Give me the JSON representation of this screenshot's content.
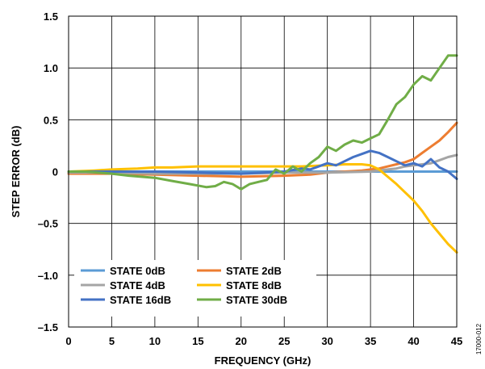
{
  "side_id": "17000-012",
  "chart_data": {
    "type": "line",
    "title": "",
    "xlabel": "FREQUENCY (GHz)",
    "ylabel": "STEP ERROR (dB)",
    "xlim": [
      0,
      45
    ],
    "ylim": [
      -1.5,
      1.5
    ],
    "xticks": [
      0,
      5,
      10,
      15,
      20,
      25,
      30,
      35,
      40,
      45
    ],
    "yticks": [
      1.5,
      1.0,
      0.5,
      0,
      -0.5,
      -1.0,
      -1.5
    ],
    "xtick_labels": [
      "0",
      "5",
      "10",
      "15",
      "20",
      "25",
      "30",
      "35",
      "40",
      "45"
    ],
    "ytick_labels": [
      "1.5",
      "1.0",
      "0.5",
      "0",
      "–0.5",
      "–1.0",
      "–1.5"
    ],
    "grid": true,
    "legend_position": "bottom-left",
    "series": [
      {
        "name": "STATE 0dB",
        "color": "#5b9bd5",
        "x": [
          0,
          45
        ],
        "y": [
          0,
          0
        ]
      },
      {
        "name": "STATE 2dB",
        "color": "#ed7d31",
        "x": [
          0,
          5,
          10,
          15,
          20,
          25,
          28,
          30,
          32,
          34,
          35,
          36,
          37,
          38,
          39,
          40,
          41,
          42,
          43,
          44,
          45
        ],
        "y": [
          -0.02,
          -0.02,
          -0.03,
          -0.04,
          -0.05,
          -0.04,
          -0.03,
          -0.01,
          0.0,
          0.01,
          0.02,
          0.03,
          0.05,
          0.07,
          0.09,
          0.12,
          0.18,
          0.24,
          0.3,
          0.38,
          0.47
        ]
      },
      {
        "name": "STATE 4dB",
        "color": "#a5a5a5",
        "x": [
          0,
          5,
          10,
          15,
          20,
          25,
          30,
          35,
          37,
          38,
          39,
          40,
          41,
          42,
          43,
          44,
          45
        ],
        "y": [
          -0.01,
          -0.01,
          -0.02,
          -0.02,
          -0.02,
          -0.01,
          -0.01,
          0.0,
          0.02,
          0.03,
          0.05,
          0.06,
          0.07,
          0.08,
          0.11,
          0.14,
          0.16
        ]
      },
      {
        "name": "STATE 8dB",
        "color": "#ffc000",
        "x": [
          0,
          3,
          5,
          8,
          10,
          12,
          15,
          18,
          20,
          23,
          25,
          27,
          30,
          32,
          34,
          35,
          36,
          37,
          38,
          39,
          40,
          41,
          42,
          43,
          44,
          45
        ],
        "y": [
          0.0,
          0.01,
          0.02,
          0.03,
          0.04,
          0.04,
          0.05,
          0.05,
          0.05,
          0.05,
          0.05,
          0.05,
          0.06,
          0.07,
          0.07,
          0.06,
          0.02,
          -0.05,
          -0.12,
          -0.2,
          -0.28,
          -0.38,
          -0.5,
          -0.6,
          -0.7,
          -0.78
        ]
      },
      {
        "name": "STATE 16dB",
        "color": "#4472c4",
        "x": [
          0,
          5,
          10,
          15,
          20,
          25,
          27,
          28,
          29,
          30,
          31,
          32,
          33,
          34,
          35,
          36,
          37,
          38,
          39,
          40,
          41,
          42,
          43,
          44,
          45
        ],
        "y": [
          0.0,
          0.0,
          0.0,
          -0.01,
          -0.02,
          0.0,
          0.03,
          0.02,
          0.05,
          0.08,
          0.06,
          0.1,
          0.14,
          0.17,
          0.2,
          0.18,
          0.14,
          0.1,
          0.06,
          0.08,
          0.05,
          0.12,
          0.04,
          0.0,
          -0.07
        ]
      },
      {
        "name": "STATE 30dB",
        "color": "#70ad47",
        "x": [
          0,
          2,
          5,
          7,
          10,
          12,
          14,
          16,
          17,
          18,
          19,
          20,
          21,
          22,
          23,
          24,
          25,
          26,
          27,
          28,
          29,
          30,
          31,
          32,
          33,
          34,
          35,
          36,
          37,
          38,
          39,
          40,
          41,
          42,
          43,
          44,
          45
        ],
        "y": [
          0.0,
          0.0,
          -0.02,
          -0.04,
          -0.06,
          -0.09,
          -0.12,
          -0.15,
          -0.14,
          -0.1,
          -0.12,
          -0.17,
          -0.12,
          -0.1,
          -0.08,
          0.02,
          -0.02,
          0.05,
          0.0,
          0.08,
          0.14,
          0.24,
          0.2,
          0.26,
          0.3,
          0.28,
          0.32,
          0.36,
          0.5,
          0.65,
          0.72,
          0.84,
          0.92,
          0.88,
          1.0,
          1.12,
          1.12
        ]
      }
    ]
  }
}
